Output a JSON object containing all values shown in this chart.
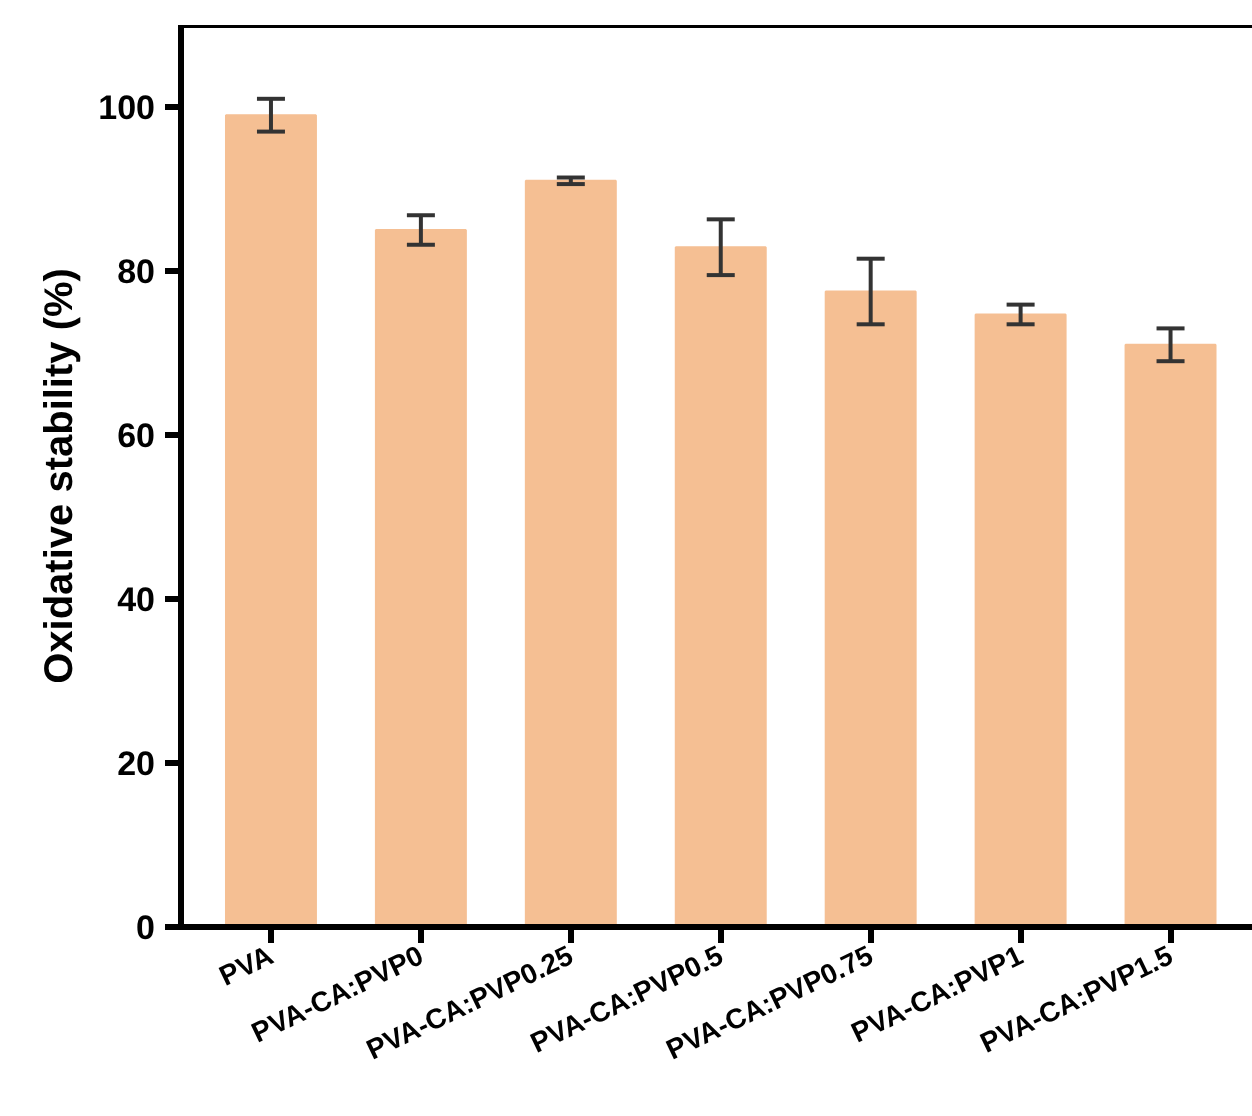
{
  "chart_data": {
    "type": "bar",
    "ylabel": "Oxidative stability (%)",
    "categories": [
      "PVA",
      "PVA-CA:PVP0",
      "PVA-CA:PVP0.25",
      "PVA-CA:PVP0.5",
      "PVA-CA:PVP0.75",
      "PVA-CA:PVP1",
      "PVA-CA:PVP1.5"
    ],
    "values": [
      99.0,
      85.0,
      91.0,
      82.9,
      77.5,
      74.7,
      71.0
    ],
    "errors": [
      2.0,
      1.8,
      0.4,
      3.4,
      4.0,
      1.2,
      2.0
    ],
    "color": "#f5bf93",
    "ylim": [
      0,
      110
    ],
    "yticks": [
      0,
      20,
      40,
      60,
      80,
      100
    ],
    "grid": false
  }
}
